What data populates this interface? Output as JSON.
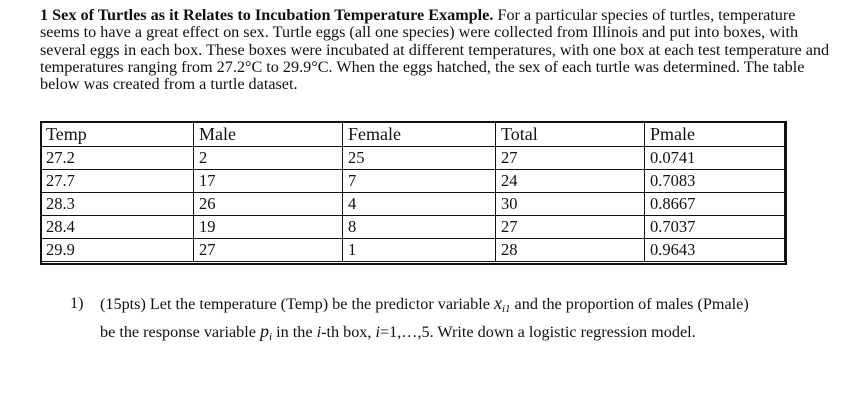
{
  "intro": {
    "number": "1",
    "title": "Sex of Turtles as it Relates to Incubation Temperature Example.",
    "text": "For a particular species of turtles, temperature seems to have a great effect on sex. Turtle eggs (all one species) were collected from Illinois and put into boxes, with several eggs in each box. These boxes were incubated at different temperatures, with one box at each test temperature and temperatures ranging from 27.2°C to 29.9°C. When the eggs hatched, the sex of each turtle was determined. The table below was created from a turtle dataset."
  },
  "table": {
    "headers": [
      "Temp",
      "Male",
      "Female",
      "Total",
      "Pmale"
    ],
    "rows": [
      [
        "27.2",
        "2",
        "25",
        "27",
        "0.0741"
      ],
      [
        "27.7",
        "17",
        "7",
        "24",
        "0.7083"
      ],
      [
        "28.3",
        "26",
        "4",
        "30",
        "0.8667"
      ],
      [
        "28.4",
        "19",
        "8",
        "27",
        "0.7037"
      ],
      [
        "29.9",
        "27",
        "1",
        "28",
        "0.9643"
      ]
    ]
  },
  "question": {
    "number": "1)",
    "part1": "(15pts) Let the temperature (Temp) be the predictor variable",
    "var_x": "x",
    "var_x_sub": "i1",
    "part2": "and the proportion of males (Pmale)",
    "part3": "be the response variable",
    "var_p": "p",
    "var_p_sub": "i",
    "part4": "in the",
    "part4_i": "i",
    "part5": "-th box,",
    "part5_i": "i",
    "part6": "=1,…,5. Write down a logistic regression model."
  }
}
